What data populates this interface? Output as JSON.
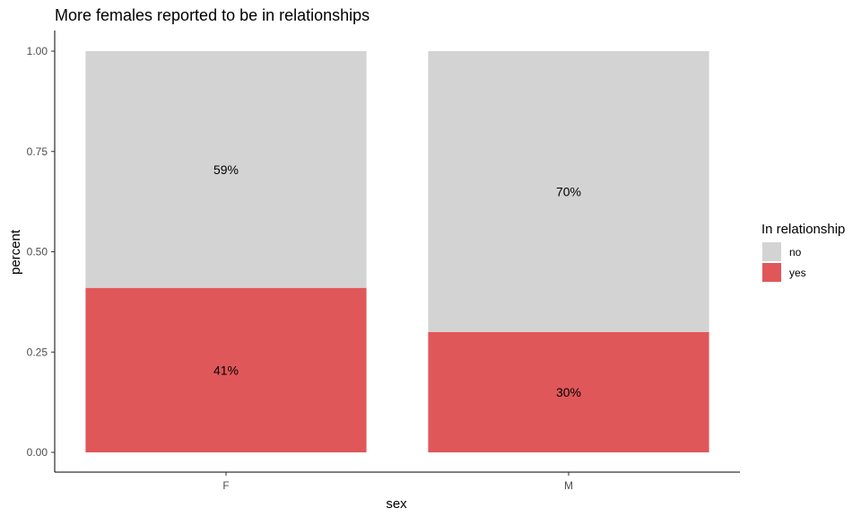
{
  "chart_data": {
    "type": "bar",
    "stacked": true,
    "title": "More females reported to be in relationships",
    "xlabel": "sex",
    "ylabel": "percent",
    "categories": [
      "F",
      "M"
    ],
    "ylim": [
      0,
      1
    ],
    "yticks": [
      "0.00",
      "0.25",
      "0.50",
      "0.75",
      "1.00"
    ],
    "series": [
      {
        "name": "yes",
        "values": [
          0.41,
          0.3
        ],
        "labels": [
          "41%",
          "30%"
        ],
        "color": "#e0575a"
      },
      {
        "name": "no",
        "values": [
          0.59,
          0.7
        ],
        "labels": [
          "59%",
          "70%"
        ],
        "color": "#d3d3d3"
      }
    ],
    "legend": {
      "title": "In relationship",
      "position": "right",
      "items": [
        {
          "label": "no",
          "color": "#d3d3d3"
        },
        {
          "label": "yes",
          "color": "#e0575a"
        }
      ]
    },
    "grid": false
  }
}
